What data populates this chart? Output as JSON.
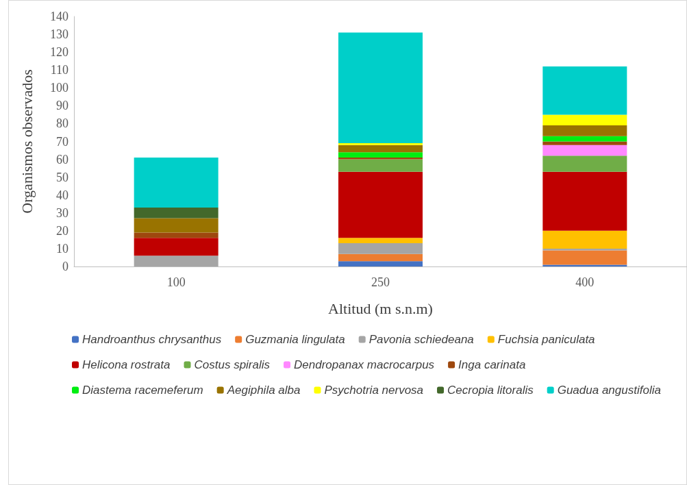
{
  "chart_data": {
    "type": "bar",
    "stacked": true,
    "xlabel": "Altitud (m s.n.m)",
    "ylabel": "Organismos observados",
    "categories": [
      "100",
      "250",
      "400"
    ],
    "ylim": [
      0,
      140
    ],
    "yticks": [
      0,
      10,
      20,
      30,
      40,
      50,
      60,
      70,
      80,
      90,
      100,
      110,
      120,
      130,
      140
    ],
    "grid": false,
    "legend": "bottom",
    "series": [
      {
        "name": "Handroanthus chrysanthus",
        "color": "#4472c4",
        "values": [
          0,
          3,
          1
        ]
      },
      {
        "name": "Guzmania lingulata",
        "color": "#ed7d31",
        "values": [
          0,
          4,
          8
        ]
      },
      {
        "name": "Pavonia schiedeana",
        "color": "#a5a5a5",
        "values": [
          6,
          6,
          1
        ]
      },
      {
        "name": "Fuchsia paniculata",
        "color": "#ffc000",
        "values": [
          0,
          3,
          10
        ]
      },
      {
        "name": "Helicona rostrata",
        "color": "#c00000",
        "values": [
          10,
          37,
          33
        ]
      },
      {
        "name": "Costus spiralis",
        "color": "#70ad47",
        "values": [
          0,
          7,
          9
        ]
      },
      {
        "name": "Dendropanax macrocarpus",
        "color": "#ff88ff",
        "values": [
          0,
          0,
          6
        ]
      },
      {
        "name": "Inga carinata",
        "color": "#9e480e",
        "values": [
          3,
          1,
          2
        ]
      },
      {
        "name": "Diastema racemeferum",
        "color": "#00ee11",
        "values": [
          0,
          3,
          3
        ]
      },
      {
        "name": "Aegiphila alba",
        "color": "#997300",
        "values": [
          8,
          4,
          6
        ]
      },
      {
        "name": "Psychotria nervosa",
        "color": "#ffff00",
        "values": [
          0,
          1,
          6
        ]
      },
      {
        "name": "Cecropia litoralis",
        "color": "#43682b",
        "values": [
          6,
          0,
          0
        ]
      },
      {
        "name": "Guadua angustifolia",
        "color": "#00cfc9",
        "values": [
          28,
          62,
          27
        ]
      }
    ]
  }
}
